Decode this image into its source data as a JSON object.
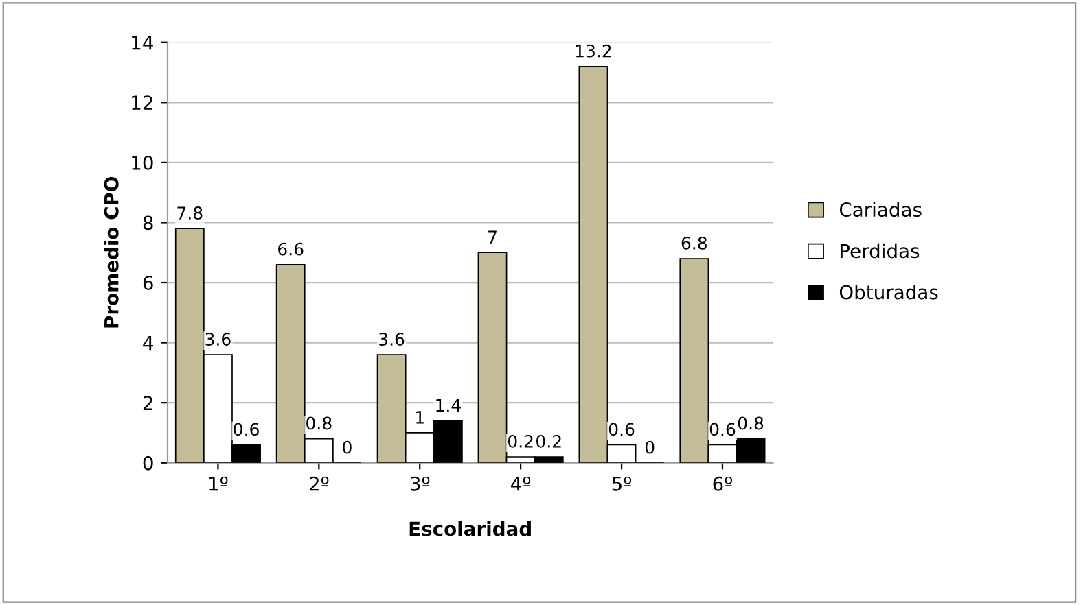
{
  "chart_data": {
    "type": "bar",
    "xlabel": "Escolaridad",
    "ylabel": "Promedio CPO",
    "categories": [
      "1º",
      "2º",
      "3º",
      "4º",
      "5º",
      "6º"
    ],
    "series": [
      {
        "name": "Cariadas",
        "color": "#c4bd97",
        "values": [
          7.8,
          6.6,
          3.6,
          7,
          13.2,
          6.8
        ]
      },
      {
        "name": "Perdidas",
        "color": "#ffffff",
        "values": [
          3.6,
          0.8,
          1,
          0.2,
          0.6,
          0.6
        ]
      },
      {
        "name": "Obturadas",
        "color": "#000000",
        "values": [
          0.6,
          0,
          1.4,
          0.2,
          0,
          0.8
        ]
      }
    ],
    "ylim": [
      0,
      14
    ],
    "yticks": [
      0,
      2,
      4,
      6,
      8,
      10,
      12,
      14
    ],
    "grid": "y",
    "legend": "right",
    "data_labels": true
  }
}
